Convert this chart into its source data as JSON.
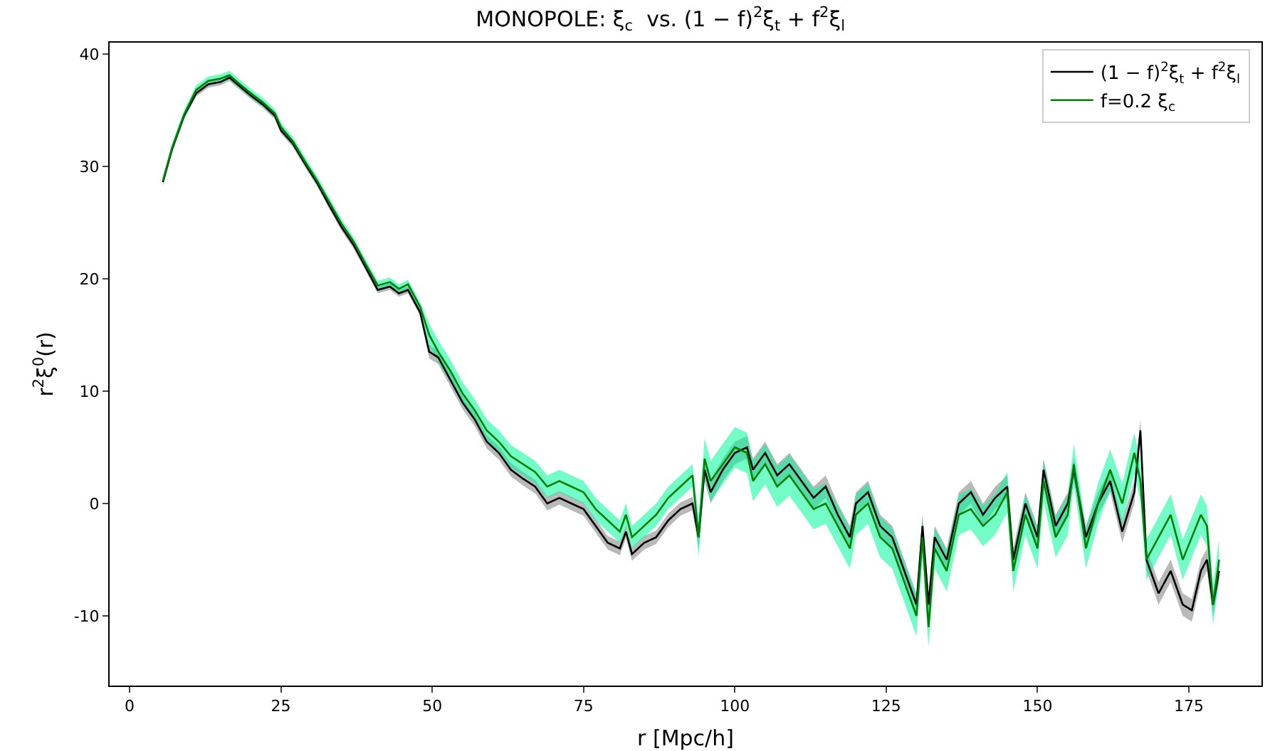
{
  "chart_data": {
    "type": "line",
    "title": "MONOPOLE: ξ$_{c}$  vs. (1 − f)$^{2}$ξ$_{t}$ + f$^{2}$ξ$_{l}$",
    "xlabel": "r [Mpc/h]",
    "ylabel": "r$^{2}$ξ$^{0}$(r)",
    "x": [
      5.5,
      7,
      9,
      11,
      13,
      15,
      16.5,
      18,
      20,
      22,
      24,
      25,
      27,
      29,
      31,
      33,
      35,
      37,
      39,
      41,
      43,
      44.5,
      46,
      48,
      49.5,
      51,
      53,
      55,
      57,
      59,
      61,
      63,
      65,
      67,
      69,
      71,
      73,
      75,
      77,
      79,
      81,
      82,
      83,
      85,
      87,
      89,
      91,
      93,
      94,
      95,
      96,
      98,
      100,
      102,
      103,
      105,
      107,
      109,
      111,
      113,
      115,
      117,
      119,
      120,
      122,
      124,
      126,
      128,
      130,
      131,
      132,
      133,
      135,
      137,
      139,
      141,
      143,
      145,
      146,
      148,
      150,
      151,
      153,
      155,
      156,
      158,
      160,
      162,
      164,
      166,
      167,
      168,
      170,
      172,
      174,
      175.5,
      177,
      178,
      179,
      180
    ],
    "series": [
      {
        "name": "(1 − f)$^{2}$ξ$_{t}$ + f$^{2}$ξ$_{l}$",
        "color": "#000000",
        "values": [
          28.6,
          31.5,
          34.5,
          36.5,
          37.3,
          37.5,
          37.9,
          37.2,
          36.3,
          35.5,
          34.5,
          33.2,
          32,
          30.2,
          28.5,
          26.5,
          24.6,
          23,
          21,
          19,
          19.3,
          18.7,
          19,
          17,
          13.5,
          13,
          11,
          9,
          7.5,
          5.5,
          4.5,
          3,
          2.2,
          1.5,
          0,
          0.5,
          0,
          -0.5,
          -2,
          -3.5,
          -4,
          -2.5,
          -4.5,
          -3.5,
          -3,
          -1.5,
          -0.5,
          0,
          -3,
          3,
          1,
          3,
          4.5,
          5,
          3,
          4.5,
          2.5,
          3.5,
          2,
          0.5,
          1.5,
          -1,
          -3,
          0,
          1,
          -2,
          -3,
          -6,
          -9,
          -2,
          -9,
          -3,
          -5,
          0,
          1,
          -1,
          0.5,
          1.5,
          -5,
          0,
          -3,
          3,
          -2,
          0,
          3,
          -3,
          0,
          2,
          -2.5,
          1,
          6.5,
          -5,
          -8,
          -6,
          -9,
          -9.5,
          -6,
          -5,
          -9,
          -6
        ],
        "lower": [
          28.3,
          31.2,
          34.2,
          36.2,
          37,
          37.2,
          37.6,
          36.9,
          36,
          35.2,
          34.2,
          32.9,
          31.7,
          29.9,
          28.2,
          26.2,
          24.3,
          22.7,
          20.7,
          18.7,
          19,
          18.4,
          18.7,
          16.7,
          12.9,
          12.4,
          10.4,
          8.4,
          6.9,
          4.9,
          3.9,
          2.4,
          1.6,
          0.9,
          -0.6,
          -0.1,
          -0.6,
          -1.1,
          -2.6,
          -4.1,
          -4.6,
          -3.1,
          -5.1,
          -4.1,
          -3.6,
          -2.1,
          -1.1,
          -0.6,
          -4,
          2,
          0,
          2,
          3.5,
          4,
          2,
          3.5,
          1.5,
          2.5,
          1,
          -0.5,
          0.5,
          -2,
          -4,
          -1,
          0,
          -3,
          -4,
          -7,
          -10,
          -3,
          -10,
          -4,
          -6,
          -1,
          0,
          -2,
          -0.5,
          0.5,
          -6,
          -1,
          -4,
          2,
          -3,
          -1,
          2,
          -4,
          -1,
          1,
          -3.5,
          0,
          5.5,
          -6,
          -9,
          -7,
          -10,
          -10.5,
          -7,
          -6,
          -10,
          -7
        ],
        "upper": [
          28.9,
          31.8,
          34.8,
          36.8,
          37.6,
          37.8,
          38.2,
          37.5,
          36.6,
          35.8,
          34.8,
          33.5,
          32.3,
          30.5,
          28.8,
          26.8,
          24.9,
          23.3,
          21.3,
          19.3,
          19.6,
          19,
          19.3,
          17.3,
          14.1,
          13.6,
          11.6,
          9.6,
          8.1,
          6.1,
          5.1,
          3.6,
          2.8,
          2.1,
          0.6,
          1.1,
          0.6,
          0.1,
          -1.4,
          -2.9,
          -3.4,
          -1.9,
          -3.9,
          -2.9,
          -2.4,
          -0.9,
          0.1,
          0.6,
          -2,
          4,
          2,
          4,
          5.5,
          6,
          4,
          5.5,
          3.5,
          4.5,
          3,
          1.5,
          2.5,
          0,
          -2,
          1,
          2,
          -1,
          -2,
          -5,
          -8,
          -1,
          -8,
          -2,
          -4,
          1,
          2,
          0,
          1.5,
          2.5,
          -4,
          1,
          -2,
          4,
          -1,
          1,
          4,
          -2,
          1,
          3,
          -1.5,
          2,
          7.5,
          -4,
          -7,
          -5,
          -8,
          -8.5,
          -5,
          -4,
          -8,
          -5
        ]
      },
      {
        "name": "f=0.2 ξ$_{c}$",
        "color": "#008000",
        "values": [
          28.7,
          31.6,
          34.6,
          36.8,
          37.6,
          37.8,
          38.1,
          37.4,
          36.5,
          35.7,
          34.7,
          33.5,
          32.2,
          30.4,
          28.7,
          26.8,
          24.9,
          23.3,
          21.3,
          19.4,
          19.7,
          19.1,
          19.5,
          17.5,
          15,
          13.5,
          11.8,
          9.8,
          8.3,
          6.5,
          5.5,
          4.2,
          3.5,
          2.8,
          1.5,
          2,
          1.5,
          1,
          -0.5,
          -1.5,
          -2.5,
          -1,
          -3,
          -2,
          -1,
          0.5,
          1.5,
          2.5,
          -3,
          4,
          2,
          3.5,
          5,
          4.5,
          2,
          3.5,
          1.5,
          2.5,
          1,
          -0.5,
          0,
          -2,
          -4,
          -1,
          0,
          -3,
          -4,
          -7,
          -10,
          -3,
          -11,
          -4,
          -6,
          -1,
          -0.5,
          -2,
          -1,
          1,
          -6,
          -1,
          -4,
          2,
          -3,
          -1,
          3.5,
          -4,
          0,
          3,
          0,
          4.5,
          2,
          -5,
          -3,
          -1,
          -5,
          -3,
          -1,
          -2,
          -9,
          -5
        ],
        "lower": [
          28.3,
          31.2,
          34.2,
          36.4,
          37.2,
          37.4,
          37.7,
          37,
          36.1,
          35.3,
          34.3,
          33.1,
          31.8,
          30,
          28.3,
          26.4,
          24.5,
          22.9,
          20.9,
          19,
          19.3,
          18.7,
          19.1,
          17.1,
          14,
          12.5,
          10.8,
          8.8,
          7.3,
          5.5,
          4.5,
          3.2,
          2.5,
          1.8,
          0.5,
          1,
          0.5,
          0,
          -1.5,
          -2.5,
          -3.5,
          -2,
          -4,
          -3,
          -2,
          -0.5,
          0.5,
          1.5,
          -4.8,
          2.2,
          0.2,
          1.7,
          3.2,
          2.7,
          0.2,
          1.7,
          -0.3,
          0.7,
          -0.8,
          -2.3,
          -1.8,
          -3.8,
          -5.8,
          -2.8,
          -1.8,
          -4.8,
          -5.8,
          -8.8,
          -11.8,
          -4.8,
          -12.8,
          -5.8,
          -7.8,
          -2.8,
          -2.3,
          -3.8,
          -2.8,
          -0.8,
          -7.8,
          -2.8,
          -5.8,
          0.2,
          -4.8,
          -2.8,
          1.7,
          -5.8,
          -1.8,
          1.2,
          -1.8,
          2.7,
          0.2,
          -6.8,
          -4.8,
          -2.8,
          -6.8,
          -4.8,
          -2.8,
          -3.8,
          -10.8,
          -6.8
        ],
        "upper": [
          29.1,
          32,
          35,
          37.2,
          38,
          38.2,
          38.5,
          37.8,
          36.9,
          36.1,
          35.1,
          33.9,
          32.6,
          30.8,
          29.1,
          27.2,
          25.3,
          23.7,
          21.7,
          19.8,
          20.1,
          19.5,
          19.9,
          17.9,
          16,
          14.5,
          12.8,
          10.8,
          9.3,
          7.5,
          6.5,
          5.2,
          4.5,
          3.8,
          2.5,
          3,
          2.5,
          2,
          0.5,
          -0.5,
          -1.5,
          0,
          -2,
          -1,
          0,
          1.5,
          2.5,
          3.5,
          -1.2,
          5.8,
          3.8,
          5.3,
          6.8,
          6.3,
          3.8,
          5.3,
          3.3,
          4.3,
          2.8,
          1.3,
          1.8,
          -0.2,
          -2.2,
          0.8,
          1.8,
          -1.2,
          -2.2,
          -5.2,
          -8.2,
          -1.2,
          -9.2,
          -2.2,
          -4.2,
          0.8,
          1.3,
          -0.2,
          0.8,
          2.8,
          -4.2,
          0.8,
          -2.2,
          3.8,
          -1.2,
          0.8,
          5.3,
          -2.2,
          1.8,
          4.8,
          1.8,
          6.3,
          3.8,
          -3.2,
          -1.2,
          0.8,
          -3.2,
          -1.2,
          0.8,
          -0.2,
          -7.2,
          -3.2
        ]
      }
    ],
    "xlim": [
      -3.3,
      187
    ],
    "ylim": [
      -16.2,
      41
    ],
    "xticks": [
      0,
      25,
      50,
      75,
      100,
      125,
      150,
      175
    ],
    "yticks": [
      -10,
      0,
      10,
      20,
      30,
      40
    ],
    "grid": false,
    "legend": "top right",
    "marker": "none",
    "line_style": "solid"
  }
}
